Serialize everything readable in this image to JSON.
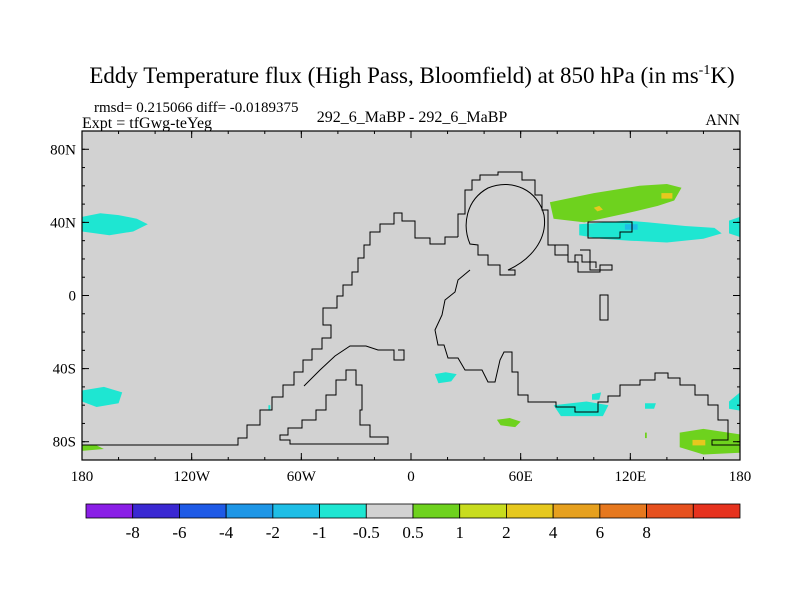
{
  "chart_data": {
    "type": "heatmap",
    "title": {
      "main": "Eddy Temperature flux (High Pass, Bloomfield) at 850 hPa (in ms",
      "sup": "-1",
      "end": "K)"
    },
    "stats_line": "rmsd= 0.215066 diff= -0.0189375",
    "left_label": "Expt = tfGwg-teYeg",
    "center_label": "292_6_MaBP - 292_6_MaBP",
    "right_label": "ANN",
    "xlim": [
      -180,
      180
    ],
    "ylim": [
      -90,
      90
    ],
    "x_ticks": [
      {
        "value": -180,
        "label": "180"
      },
      {
        "value": -120,
        "label": "120W"
      },
      {
        "value": -60,
        "label": "60W"
      },
      {
        "value": 0,
        "label": "0"
      },
      {
        "value": 60,
        "label": "60E"
      },
      {
        "value": 120,
        "label": "120E"
      },
      {
        "value": 180,
        "label": "180"
      }
    ],
    "y_ticks": [
      {
        "value": 80,
        "label": "80N"
      },
      {
        "value": 40,
        "label": "40N"
      },
      {
        "value": 0,
        "label": "0"
      },
      {
        "value": -40,
        "label": "40S"
      },
      {
        "value": -80,
        "label": "80S"
      }
    ],
    "colorbar": {
      "colors": [
        "#8a1ee6",
        "#3a28d2",
        "#1e5ae6",
        "#1e96e6",
        "#1ebee6",
        "#1ee6d2",
        "#d2d2d2",
        "#6ed21e",
        "#c8dc1e",
        "#e6c81e",
        "#e6a01e",
        "#e6781e",
        "#e6501e",
        "#e6321e"
      ],
      "boundaries": [
        "-8",
        "-6",
        "-4",
        "-2",
        "-1",
        "-0.5",
        "0.5",
        "1",
        "2",
        "4",
        "6",
        "8"
      ]
    },
    "background_color": "#d2d2d2",
    "coast_color": "#000000",
    "patches": [
      {
        "lonlat": [
          [
            -180,
            43
          ],
          [
            -170,
            45
          ],
          [
            -160,
            44
          ],
          [
            -150,
            42
          ],
          [
            -144,
            39
          ],
          [
            -152,
            35
          ],
          [
            -165,
            33
          ],
          [
            -180,
            35
          ]
        ],
        "color": "#1ee6d2"
      },
      {
        "lonlat": [
          [
            -180,
            -52
          ],
          [
            -168,
            -50
          ],
          [
            -158,
            -53
          ],
          [
            -160,
            -59
          ],
          [
            -172,
            -61
          ],
          [
            -180,
            -58
          ]
        ],
        "color": "#1ee6d2"
      },
      {
        "lonlat": [
          [
            -180,
            -82
          ],
          [
            -172,
            -82
          ],
          [
            -168,
            -84
          ],
          [
            -180,
            -85
          ]
        ],
        "color": "#6ed21e"
      },
      {
        "lonlat": [
          [
            -78,
            -60
          ],
          [
            -77,
            -60
          ],
          [
            -77,
            -63
          ],
          [
            -78,
            -63
          ]
        ],
        "color": "#1ee6d2"
      },
      {
        "lonlat": [
          [
            13,
            -43
          ],
          [
            19,
            -42
          ],
          [
            25,
            -43
          ],
          [
            22,
            -47
          ],
          [
            15,
            -48
          ]
        ],
        "color": "#1ee6d2"
      },
      {
        "lonlat": [
          [
            47,
            -68
          ],
          [
            54,
            -67
          ],
          [
            60,
            -69
          ],
          [
            57,
            -72
          ],
          [
            49,
            -71
          ]
        ],
        "color": "#6ed21e"
      },
      {
        "lonlat": [
          [
            78,
            -60
          ],
          [
            96,
            -58
          ],
          [
            108,
            -60
          ],
          [
            105,
            -66
          ],
          [
            82,
            -66
          ]
        ],
        "color": "#1ee6d2"
      },
      {
        "lonlat": [
          [
            99,
            -54
          ],
          [
            104,
            -53
          ],
          [
            103,
            -57
          ],
          [
            99,
            -57
          ]
        ],
        "color": "#1ee6d2"
      },
      {
        "lonlat": [
          [
            128,
            -59
          ],
          [
            134,
            -59
          ],
          [
            133,
            -62
          ],
          [
            128,
            -62
          ]
        ],
        "color": "#1ee6d2"
      },
      {
        "lonlat": [
          [
            174,
            -58
          ],
          [
            180,
            -53
          ],
          [
            180,
            -63
          ],
          [
            174,
            -62
          ]
        ],
        "color": "#1ee6d2"
      },
      {
        "lonlat": [
          [
            147,
            -75
          ],
          [
            160,
            -73
          ],
          [
            180,
            -76
          ],
          [
            180,
            -86
          ],
          [
            160,
            -87
          ],
          [
            147,
            -83
          ]
        ],
        "color": "#6ed21e"
      },
      {
        "lonlat": [
          [
            154,
            -79
          ],
          [
            161,
            -79
          ],
          [
            161,
            -82
          ],
          [
            154,
            -82
          ]
        ],
        "color": "#e6c81e"
      },
      {
        "lonlat": [
          [
            128,
            -75
          ],
          [
            129,
            -75
          ],
          [
            129,
            -78
          ],
          [
            128,
            -78
          ]
        ],
        "color": "#6ed21e"
      },
      {
        "lonlat": [
          [
            76,
            51
          ],
          [
            100,
            56
          ],
          [
            125,
            60
          ],
          [
            140,
            61
          ],
          [
            148,
            59
          ],
          [
            144,
            52
          ],
          [
            135,
            49
          ],
          [
            118,
            45
          ],
          [
            95,
            40
          ],
          [
            78,
            42
          ]
        ],
        "color": "#6ed21e"
      },
      {
        "lonlat": [
          [
            137,
            56
          ],
          [
            143,
            56
          ],
          [
            143,
            53
          ],
          [
            137,
            53
          ]
        ],
        "color": "#e6c81e"
      },
      {
        "lonlat": [
          [
            100,
            48
          ],
          [
            103,
            49
          ],
          [
            105,
            47
          ],
          [
            102,
            46
          ]
        ],
        "color": "#e6c81e"
      },
      {
        "lonlat": [
          [
            92,
            39
          ],
          [
            106,
            40
          ],
          [
            118,
            41
          ],
          [
            130,
            40
          ],
          [
            150,
            38
          ],
          [
            166,
            37
          ],
          [
            170,
            34
          ],
          [
            160,
            31
          ],
          [
            140,
            29
          ],
          [
            120,
            30
          ],
          [
            104,
            31
          ],
          [
            92,
            33
          ]
        ],
        "color": "#1ee6d2"
      },
      {
        "lonlat": [
          [
            117,
            39
          ],
          [
            124,
            39
          ],
          [
            124,
            36
          ],
          [
            117,
            36
          ]
        ],
        "color": "#1ebee6"
      },
      {
        "lonlat": [
          [
            174,
            41
          ],
          [
            180,
            43
          ],
          [
            180,
            32
          ],
          [
            174,
            34
          ]
        ],
        "color": "#1ee6d2"
      }
    ]
  }
}
